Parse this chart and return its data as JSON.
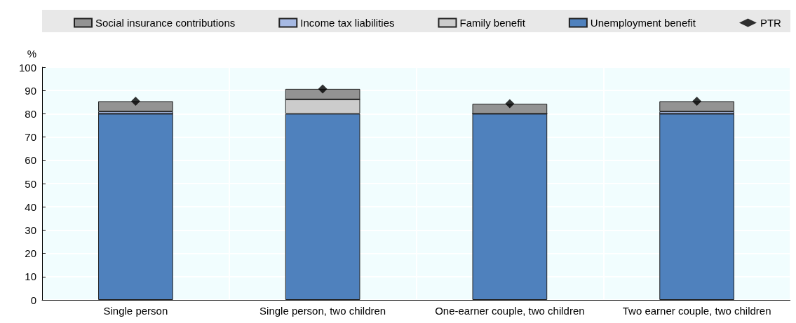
{
  "chart_data": {
    "type": "bar",
    "stacked": true,
    "ylabel": "%",
    "categories": [
      "Single person",
      "Single person, two children",
      "One-earner couple, two children",
      "Two earner couple, two children"
    ],
    "series": [
      {
        "name": "Unemployment benefit",
        "color": "#4f81bd",
        "values": [
          80,
          80,
          80,
          80
        ]
      },
      {
        "name": "Family benefit",
        "color": "#cccccc",
        "values": [
          0,
          6.2,
          0,
          0
        ]
      },
      {
        "name": "Income tax liabilities",
        "color": "#a6b9e3",
        "values": [
          1,
          0,
          0,
          1
        ]
      },
      {
        "name": "Social insurance contributions",
        "color": "#939393",
        "values": [
          4.4,
          4.5,
          4.3,
          4.4
        ]
      },
      {
        "name": "PTR",
        "type": "scatter",
        "marker": "diamond",
        "color": "#000000",
        "values": [
          85.4,
          90.7,
          84.3,
          85.4
        ]
      }
    ],
    "ylim": [
      0,
      100
    ],
    "yticks": [
      0,
      10,
      20,
      30,
      40,
      50,
      60,
      70,
      80,
      90,
      100
    ],
    "grid": true,
    "legend": "top"
  }
}
